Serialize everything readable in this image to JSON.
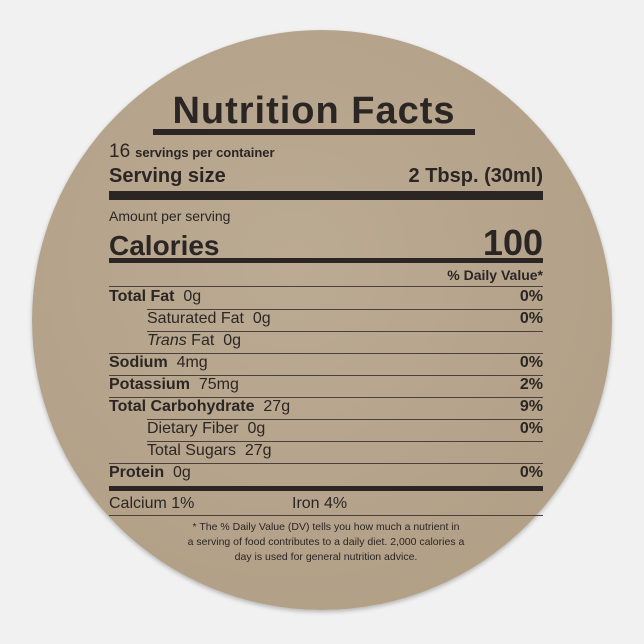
{
  "header": {
    "title": "Nutrition Facts",
    "servings_count": "16",
    "servings_text": "servings per container",
    "serving_size_label": "Serving size",
    "serving_size_value": "2 Tbsp. (30ml)"
  },
  "calories": {
    "amount_label": "Amount per serving",
    "label": "Calories",
    "value": "100"
  },
  "daily_value_header": "% Daily Value*",
  "nutrients": [
    {
      "name": "Total Fat",
      "amount": "0g",
      "dv": "0%"
    },
    {
      "name": "Saturated Fat",
      "amount": "0g",
      "dv": "0%"
    },
    {
      "name_italic": "Trans",
      "name": "Fat",
      "amount": "0g"
    },
    {
      "name": "Sodium",
      "amount": "4mg",
      "dv": "0%"
    },
    {
      "name": "Potassium",
      "amount": "75mg",
      "dv": "2%"
    },
    {
      "name": "Total Carbohydrate",
      "amount": "27g",
      "dv": "9%"
    },
    {
      "name": "Dietary Fiber",
      "amount": "0g",
      "dv": "0%"
    },
    {
      "name": "Total Sugars",
      "amount": "27g"
    },
    {
      "name": "Protein",
      "amount": "0g",
      "dv": "0%"
    }
  ],
  "minerals": [
    "Calcium 1%",
    "Iron 4%"
  ],
  "footnote": [
    "* The % Daily Value (DV) tells you how much a nutrient in",
    "a serving of food contributes to a daily diet. 2,000 calories a",
    "day is used for general nutrition advice."
  ]
}
